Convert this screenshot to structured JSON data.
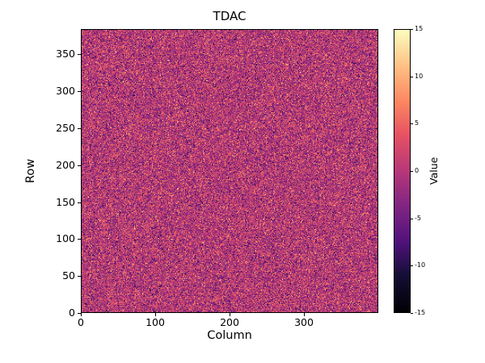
{
  "chart_data": {
    "type": "heatmap",
    "title": "TDAC",
    "xlabel": "Column",
    "ylabel": "Row",
    "colorbar_label": "Value",
    "x_range": [
      0,
      400
    ],
    "y_range": [
      0,
      384
    ],
    "value_range": [
      -15,
      15
    ],
    "x_ticks": [
      0,
      100,
      200,
      300
    ],
    "y_ticks": [
      0,
      50,
      100,
      150,
      200,
      250,
      300,
      350
    ],
    "colorbar_ticks": [
      15,
      10,
      5,
      0,
      -5,
      -10,
      -15
    ],
    "grid": false,
    "legend": "none",
    "colormap": "magma",
    "colormap_stops": [
      {
        "pos": 0.0,
        "color": "#000004"
      },
      {
        "pos": 0.13,
        "color": "#140e36"
      },
      {
        "pos": 0.25,
        "color": "#51127c"
      },
      {
        "pos": 0.38,
        "color": "#822681"
      },
      {
        "pos": 0.5,
        "color": "#b73779"
      },
      {
        "pos": 0.63,
        "color": "#e75263"
      },
      {
        "pos": 0.75,
        "color": "#fc8961"
      },
      {
        "pos": 0.88,
        "color": "#fec488"
      },
      {
        "pos": 1.0,
        "color": "#fcfdbf"
      }
    ],
    "data_description": "400x384 per-pixel random noise map; values centered near 0 (magenta/purple) with sparse bright orange and dark speckles across the full area",
    "noise": {
      "mean": 0,
      "std": 4.5,
      "seed": 42,
      "cols": 400,
      "rows": 384
    }
  }
}
